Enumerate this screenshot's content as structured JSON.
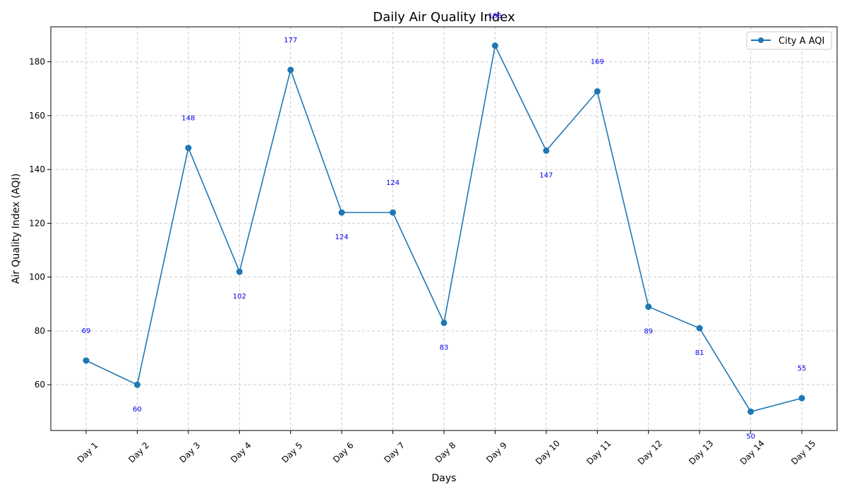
{
  "chart_data": {
    "type": "line",
    "title": "Daily Air Quality Index",
    "xlabel": "Days",
    "ylabel": "Air Quality Index (AQI)",
    "categories": [
      "Day 1",
      "Day 2",
      "Day 3",
      "Day 4",
      "Day 5",
      "Day 6",
      "Day 7",
      "Day 8",
      "Day 9",
      "Day 10",
      "Day 11",
      "Day 12",
      "Day 13",
      "Day 14",
      "Day 15"
    ],
    "series": [
      {
        "name": "City A AQI",
        "values": [
          69,
          60,
          148,
          102,
          177,
          124,
          124,
          83,
          186,
          147,
          169,
          89,
          81,
          50,
          55
        ],
        "color": "#1f77b4"
      }
    ],
    "ylim": [
      43,
      193
    ],
    "yticks": [
      60,
      80,
      100,
      120,
      140,
      160,
      180
    ],
    "grid": true,
    "legend_position": "top-right",
    "data_label_color": "#0000ee"
  }
}
